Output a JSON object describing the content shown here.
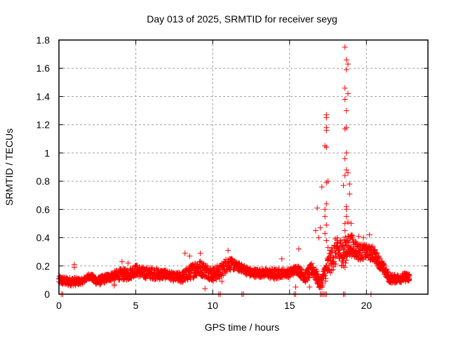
{
  "chart_data": {
    "type": "scatter",
    "title": "Day 013 of 2025, SRMTID for receiver seyg",
    "xlabel": "GPS time / hours",
    "ylabel": "SRMTID / TECUs",
    "xlim": [
      0,
      24
    ],
    "ylim": [
      0,
      1.8
    ],
    "xticks": [
      "0",
      "5",
      "10",
      "15",
      "20"
    ],
    "xtick_values": [
      0,
      5,
      10,
      15,
      20
    ],
    "yticks": [
      "0",
      "0.2",
      "0.4",
      "0.6",
      "0.8",
      "1",
      "1.2",
      "1.4",
      "1.6",
      "1.8"
    ],
    "ytick_values": [
      0,
      0.2,
      0.4,
      0.6,
      0.8,
      1.0,
      1.2,
      1.4,
      1.6,
      1.8
    ],
    "grid": true,
    "marker": "plus",
    "color": "#ff0000",
    "series": [
      {
        "name": "SRMTID",
        "description": "Band summary: hour, median, spread (envelope of dense points)",
        "bands": [
          [
            0.0,
            0.1,
            0.03
          ],
          [
            0.5,
            0.09,
            0.03
          ],
          [
            1.0,
            0.09,
            0.03
          ],
          [
            1.5,
            0.09,
            0.02
          ],
          [
            2.0,
            0.13,
            0.02
          ],
          [
            2.5,
            0.09,
            0.03
          ],
          [
            3.0,
            0.11,
            0.03
          ],
          [
            3.5,
            0.13,
            0.03
          ],
          [
            4.0,
            0.14,
            0.04
          ],
          [
            4.5,
            0.14,
            0.04
          ],
          [
            5.0,
            0.17,
            0.04
          ],
          [
            5.5,
            0.15,
            0.04
          ],
          [
            6.0,
            0.15,
            0.04
          ],
          [
            6.5,
            0.14,
            0.04
          ],
          [
            7.0,
            0.14,
            0.03
          ],
          [
            7.5,
            0.12,
            0.03
          ],
          [
            8.0,
            0.12,
            0.04
          ],
          [
            8.5,
            0.15,
            0.05
          ],
          [
            9.0,
            0.19,
            0.06
          ],
          [
            9.5,
            0.17,
            0.05
          ],
          [
            10.0,
            0.14,
            0.05
          ],
          [
            10.5,
            0.16,
            0.05
          ],
          [
            11.0,
            0.22,
            0.05
          ],
          [
            11.5,
            0.2,
            0.03
          ],
          [
            12.0,
            0.18,
            0.03
          ],
          [
            12.5,
            0.15,
            0.03
          ],
          [
            13.0,
            0.15,
            0.03
          ],
          [
            13.5,
            0.15,
            0.03
          ],
          [
            14.0,
            0.14,
            0.04
          ],
          [
            14.5,
            0.15,
            0.03
          ],
          [
            15.0,
            0.15,
            0.03
          ],
          [
            15.5,
            0.18,
            0.03
          ],
          [
            16.0,
            0.12,
            0.04
          ],
          [
            16.5,
            0.18,
            0.05
          ],
          [
            17.0,
            0.07,
            0.04
          ],
          [
            17.5,
            0.2,
            0.08
          ],
          [
            18.0,
            0.3,
            0.1
          ],
          [
            18.5,
            0.3,
            0.1
          ],
          [
            19.0,
            0.35,
            0.08
          ],
          [
            19.5,
            0.3,
            0.06
          ],
          [
            20.0,
            0.3,
            0.05
          ],
          [
            20.5,
            0.28,
            0.05
          ],
          [
            21.0,
            0.2,
            0.04
          ],
          [
            21.5,
            0.11,
            0.03
          ],
          [
            22.0,
            0.11,
            0.03
          ],
          [
            22.5,
            0.12,
            0.03
          ],
          [
            22.8,
            0.12,
            0.03
          ]
        ],
        "outliers": [
          [
            1.0,
            0.21
          ],
          [
            1.0,
            0.19
          ],
          [
            3.6,
            0.07
          ],
          [
            3.6,
            0.06
          ],
          [
            4.1,
            0.23
          ],
          [
            4.5,
            0.22
          ],
          [
            8.2,
            0.29
          ],
          [
            8.5,
            0.27
          ],
          [
            9.2,
            0.29
          ],
          [
            9.5,
            0.04
          ],
          [
            10.6,
            0.09
          ],
          [
            11.0,
            0.31
          ],
          [
            14.5,
            0.25
          ],
          [
            15.4,
            0.05
          ],
          [
            15.6,
            0.32
          ],
          [
            16.3,
            0.05
          ],
          [
            16.7,
            0.45
          ],
          [
            16.8,
            0.61
          ],
          [
            16.9,
            0.4
          ],
          [
            17.0,
            0.47
          ],
          [
            17.1,
            0.76
          ],
          [
            17.3,
            0.43
          ],
          [
            17.3,
            0.55
          ],
          [
            17.3,
            0.6
          ],
          [
            17.4,
            0.64
          ],
          [
            17.4,
            0.79
          ],
          [
            17.5,
            0.8
          ],
          [
            17.4,
            0.49
          ],
          [
            17.4,
            0.38
          ],
          [
            17.3,
            1.05
          ],
          [
            17.4,
            1.04
          ],
          [
            17.4,
            1.16
          ],
          [
            17.4,
            1.18
          ],
          [
            17.4,
            1.25
          ],
          [
            17.4,
            1.27
          ],
          [
            17.5,
            0.33
          ],
          [
            18.5,
            0.77
          ],
          [
            18.6,
            0.84
          ],
          [
            18.6,
            0.96
          ],
          [
            18.6,
            0.5
          ],
          [
            18.6,
            0.45
          ],
          [
            18.7,
            0.6
          ],
          [
            18.7,
            0.62
          ],
          [
            18.7,
            0.55
          ],
          [
            18.7,
            0.88
          ],
          [
            18.7,
            1.0
          ],
          [
            18.6,
            1.17
          ],
          [
            18.7,
            1.18
          ],
          [
            18.7,
            1.3
          ],
          [
            18.6,
            1.38
          ],
          [
            18.6,
            1.46
          ],
          [
            18.8,
            1.42
          ],
          [
            18.7,
            1.59
          ],
          [
            18.8,
            1.63
          ],
          [
            18.7,
            1.66
          ],
          [
            18.6,
            1.75
          ],
          [
            18.8,
            0.86
          ],
          [
            18.9,
            0.78
          ],
          [
            18.9,
            0.71
          ],
          [
            18.8,
            0.51
          ],
          [
            19.0,
            0.5
          ],
          [
            19.2,
            0.35
          ],
          [
            19.5,
            0.41
          ],
          [
            19.0,
            0.42
          ],
          [
            18.8,
            0.38
          ],
          [
            18.6,
            0.29
          ],
          [
            19.8,
            0.4
          ],
          [
            20.2,
            0.42
          ],
          [
            20.4,
            0.34
          ],
          [
            20.8,
            0.27
          ],
          [
            21.3,
            0.17
          ],
          [
            18.5,
            0.2
          ],
          [
            18.6,
            0.19
          ],
          [
            18.7,
            0.38
          ]
        ],
        "zero_points": [
          0.15,
          0.25,
          10.4,
          10.5,
          11.9,
          12.0,
          15.3,
          15.4,
          17.0,
          17.1,
          17.2,
          17.3,
          17.4,
          18.5,
          18.6,
          20.3
        ]
      }
    ]
  }
}
